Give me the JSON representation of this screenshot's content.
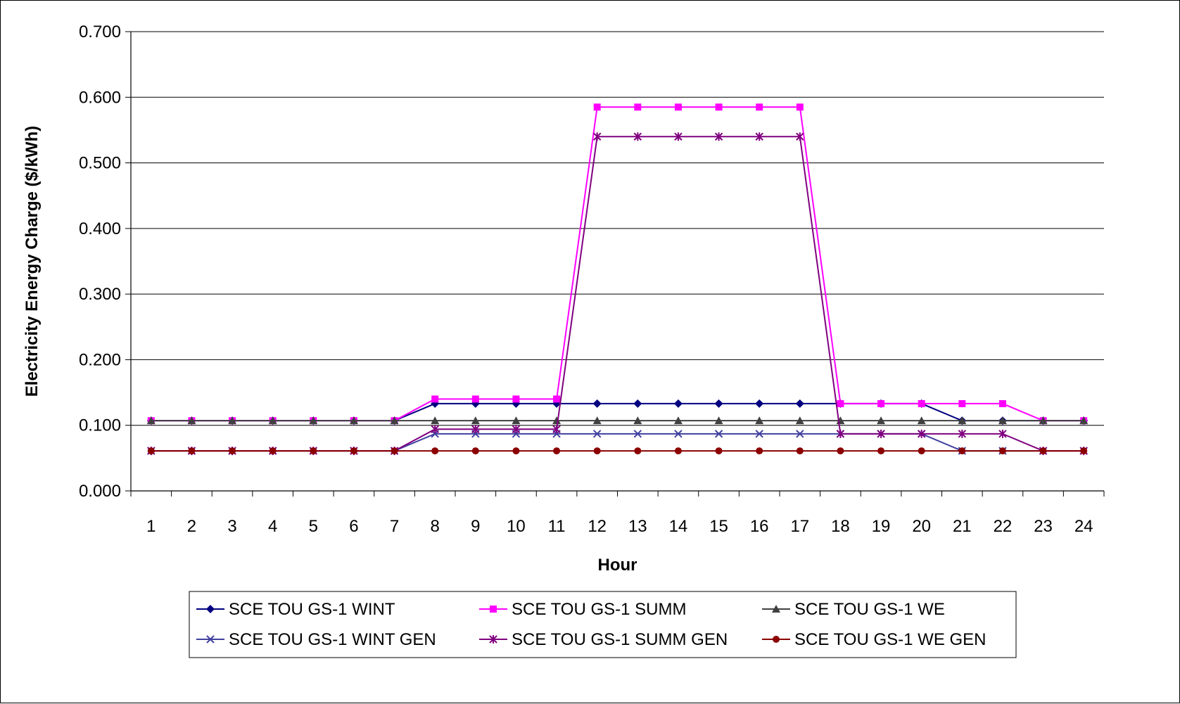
{
  "chart_data": {
    "type": "line",
    "title": "",
    "xlabel": "Hour",
    "ylabel": "Electricity Energy Charge ($/kWh)",
    "ylim": [
      0,
      0.7
    ],
    "yticks": [
      "0.000",
      "0.100",
      "0.200",
      "0.300",
      "0.400",
      "0.500",
      "0.600",
      "0.700"
    ],
    "grid": "horizontal",
    "legend_position": "bottom",
    "categories": [
      "1",
      "2",
      "3",
      "4",
      "5",
      "6",
      "7",
      "8",
      "9",
      "10",
      "11",
      "12",
      "13",
      "14",
      "15",
      "16",
      "17",
      "18",
      "19",
      "20",
      "21",
      "22",
      "23",
      "24"
    ],
    "series": [
      {
        "name": "SCE TOU GS-1 WINT",
        "color": "#000080",
        "marker": "diamond",
        "values": [
          0.107,
          0.107,
          0.107,
          0.107,
          0.107,
          0.107,
          0.107,
          0.133,
          0.133,
          0.133,
          0.133,
          0.133,
          0.133,
          0.133,
          0.133,
          0.133,
          0.133,
          0.133,
          0.133,
          0.133,
          0.107,
          0.107,
          0.107,
          0.107
        ]
      },
      {
        "name": "SCE TOU GS-1 SUMM",
        "color": "#FF00FF",
        "marker": "square",
        "values": [
          0.107,
          0.107,
          0.107,
          0.107,
          0.107,
          0.107,
          0.107,
          0.14,
          0.14,
          0.14,
          0.14,
          0.585,
          0.585,
          0.585,
          0.585,
          0.585,
          0.585,
          0.133,
          0.133,
          0.133,
          0.133,
          0.133,
          0.107,
          0.107
        ]
      },
      {
        "name": "SCE TOU GS-1 WE",
        "color": "#404040",
        "marker": "triangle",
        "values": [
          0.107,
          0.107,
          0.107,
          0.107,
          0.107,
          0.107,
          0.107,
          0.107,
          0.107,
          0.107,
          0.107,
          0.107,
          0.107,
          0.107,
          0.107,
          0.107,
          0.107,
          0.107,
          0.107,
          0.107,
          0.107,
          0.107,
          0.107,
          0.107
        ]
      },
      {
        "name": "SCE TOU GS-1 WINT GEN",
        "color": "#4040A0",
        "marker": "x",
        "values": [
          0.061,
          0.061,
          0.061,
          0.061,
          0.061,
          0.061,
          0.061,
          0.087,
          0.087,
          0.087,
          0.087,
          0.087,
          0.087,
          0.087,
          0.087,
          0.087,
          0.087,
          0.087,
          0.087,
          0.087,
          0.061,
          0.061,
          0.061,
          0.061
        ]
      },
      {
        "name": "SCE TOU GS-1 SUMM GEN",
        "color": "#800080",
        "marker": "star",
        "values": [
          0.061,
          0.061,
          0.061,
          0.061,
          0.061,
          0.061,
          0.061,
          0.094,
          0.094,
          0.094,
          0.094,
          0.54,
          0.54,
          0.54,
          0.54,
          0.54,
          0.54,
          0.087,
          0.087,
          0.087,
          0.087,
          0.087,
          0.061,
          0.061
        ]
      },
      {
        "name": "SCE TOU GS-1 WE GEN",
        "color": "#8B0000",
        "marker": "circle",
        "values": [
          0.061,
          0.061,
          0.061,
          0.061,
          0.061,
          0.061,
          0.061,
          0.061,
          0.061,
          0.061,
          0.061,
          0.061,
          0.061,
          0.061,
          0.061,
          0.061,
          0.061,
          0.061,
          0.061,
          0.061,
          0.061,
          0.061,
          0.061,
          0.061
        ]
      }
    ]
  }
}
